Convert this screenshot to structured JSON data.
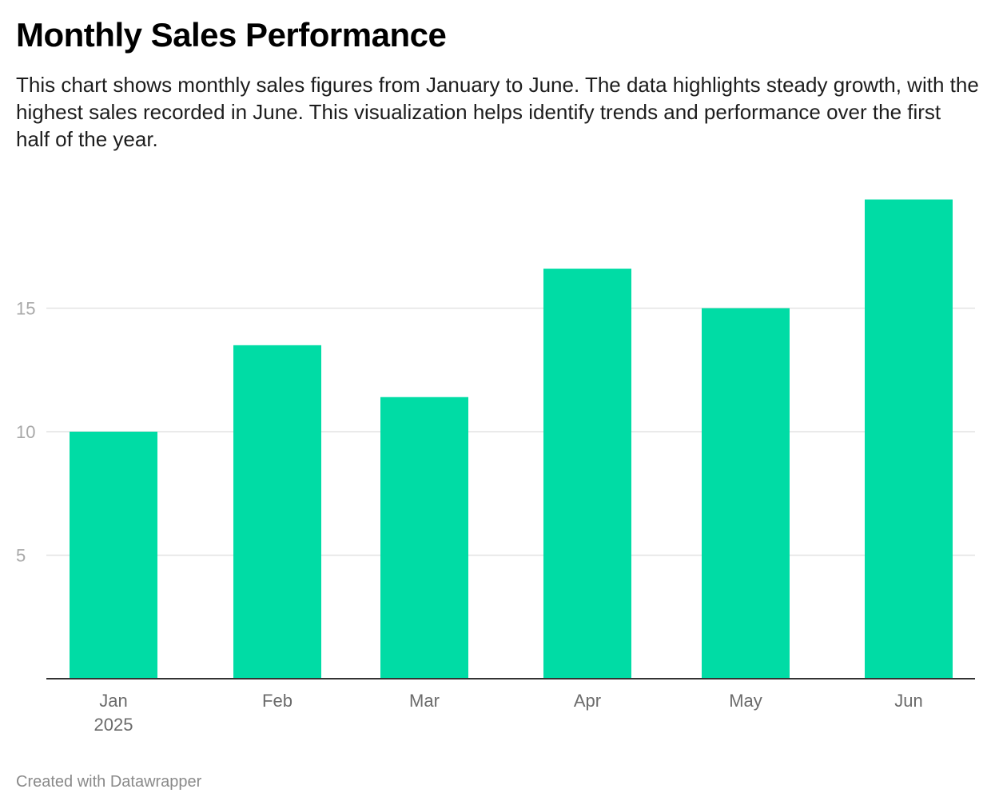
{
  "header": {
    "title": "Monthly Sales Performance",
    "description": "This chart shows monthly sales figures from January to June. The data highlights steady growth, with the highest sales recorded in June. This visualization helps identify trends and performance over the first half of the year."
  },
  "footer": {
    "credit": "Created with Datawrapper"
  },
  "colors": {
    "bar": "#00dca5",
    "grid": "#e3e3e3",
    "axis": "#333333"
  },
  "chart_data": {
    "type": "bar",
    "categories": [
      "Jan",
      "Feb",
      "Mar",
      "Apr",
      "May",
      "Jun"
    ],
    "category_sublabels": [
      "2025",
      "",
      "",
      "",
      "",
      ""
    ],
    "values": [
      10,
      13.5,
      11.4,
      16.6,
      15,
      19.4
    ],
    "yticks": [
      5,
      10,
      15
    ],
    "ylim": [
      0,
      20
    ],
    "grid": true,
    "legend": "none",
    "title": "Monthly Sales Performance",
    "xlabel": "",
    "ylabel": ""
  }
}
